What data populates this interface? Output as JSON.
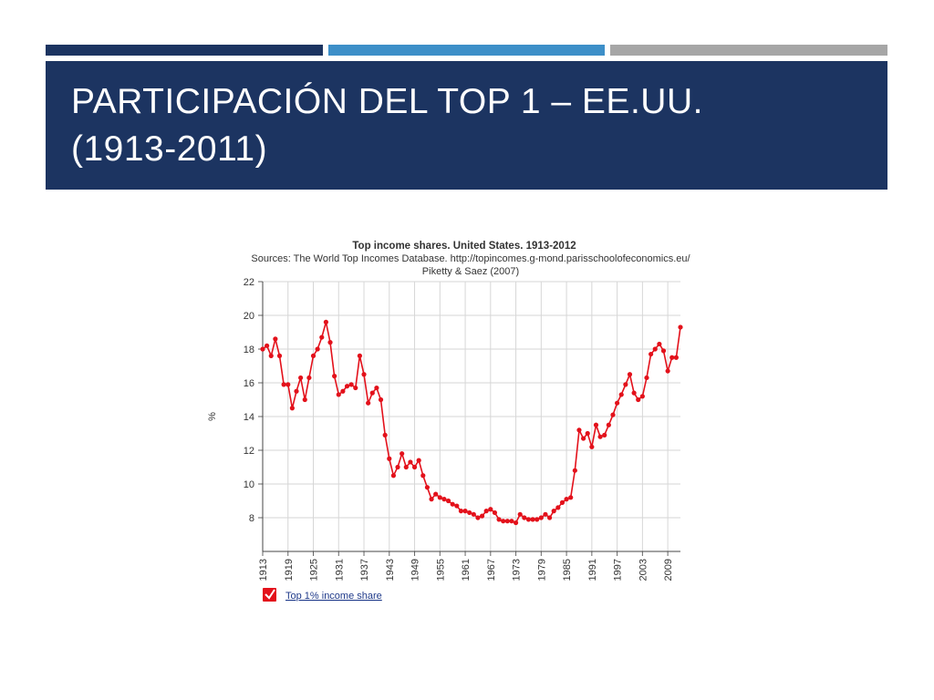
{
  "slide": {
    "title_line1": "PARTICIPACIÓN DEL TOP 1 – EE.UU.",
    "title_line2": "(1913-2011)",
    "colors": {
      "banner": "#1c3461",
      "accent_bar_1": "#1c3461",
      "accent_bar_2": "#3d8fc8",
      "accent_bar_3": "#a6a6a6",
      "title_text": "#ffffff"
    }
  },
  "chart_data": {
    "type": "line",
    "title": "Top income shares. United States. 1913-2012",
    "subtitle_line1": "Sources: The World Top Incomes Database. http://topincomes.g-mond.parisschoolofeconomics.eu/",
    "subtitle_line2": "Piketty & Saez (2007)",
    "xlabel": "",
    "ylabel": "%",
    "xlim": [
      1913,
      2012
    ],
    "ylim": [
      6,
      22
    ],
    "y_ticks": [
      8,
      10,
      12,
      14,
      16,
      18,
      20,
      22
    ],
    "x_ticks": [
      1913,
      1919,
      1925,
      1931,
      1937,
      1943,
      1949,
      1955,
      1961,
      1967,
      1973,
      1979,
      1985,
      1991,
      1997,
      2003,
      2009
    ],
    "grid": true,
    "legend_position": "bottom-left",
    "series_color": "#e3111b",
    "series": [
      {
        "name": "Top 1% income share",
        "x": [
          1913,
          1914,
          1915,
          1916,
          1917,
          1918,
          1919,
          1920,
          1921,
          1922,
          1923,
          1924,
          1925,
          1926,
          1927,
          1928,
          1929,
          1930,
          1931,
          1932,
          1933,
          1934,
          1935,
          1936,
          1937,
          1938,
          1939,
          1940,
          1941,
          1942,
          1943,
          1944,
          1945,
          1946,
          1947,
          1948,
          1949,
          1950,
          1951,
          1952,
          1953,
          1954,
          1955,
          1956,
          1957,
          1958,
          1959,
          1960,
          1961,
          1962,
          1963,
          1964,
          1965,
          1966,
          1967,
          1968,
          1969,
          1970,
          1971,
          1972,
          1973,
          1974,
          1975,
          1976,
          1977,
          1978,
          1979,
          1980,
          1981,
          1982,
          1983,
          1984,
          1985,
          1986,
          1987,
          1988,
          1989,
          1990,
          1991,
          1992,
          1993,
          1994,
          1995,
          1996,
          1997,
          1998,
          1999,
          2000,
          2001,
          2002,
          2003,
          2004,
          2005,
          2006,
          2007,
          2008,
          2009,
          2010,
          2011,
          2012
        ],
        "values": [
          18.0,
          18.2,
          17.6,
          18.6,
          17.6,
          15.9,
          15.9,
          14.5,
          15.5,
          16.3,
          15.0,
          16.3,
          17.6,
          18.0,
          18.7,
          19.6,
          18.4,
          16.4,
          15.3,
          15.5,
          15.8,
          15.9,
          15.7,
          17.6,
          16.5,
          14.8,
          15.4,
          15.7,
          15.0,
          12.9,
          11.5,
          10.5,
          11.0,
          11.8,
          11.0,
          11.3,
          11.0,
          11.4,
          10.5,
          9.8,
          9.1,
          9.4,
          9.2,
          9.1,
          9.0,
          8.8,
          8.7,
          8.4,
          8.4,
          8.3,
          8.2,
          8.0,
          8.1,
          8.4,
          8.5,
          8.3,
          7.9,
          7.8,
          7.8,
          7.8,
          7.7,
          8.2,
          8.0,
          7.9,
          7.9,
          7.9,
          8.0,
          8.2,
          8.0,
          8.4,
          8.6,
          8.9,
          9.1,
          9.2,
          10.8,
          13.2,
          12.7,
          13.0,
          12.2,
          13.5,
          12.8,
          12.9,
          13.5,
          14.1,
          14.8,
          15.3,
          15.9,
          16.5,
          15.4,
          15.0,
          15.2,
          16.3,
          17.7,
          18.0,
          18.3,
          17.9,
          16.7,
          17.5,
          17.5,
          19.3
        ]
      }
    ]
  }
}
